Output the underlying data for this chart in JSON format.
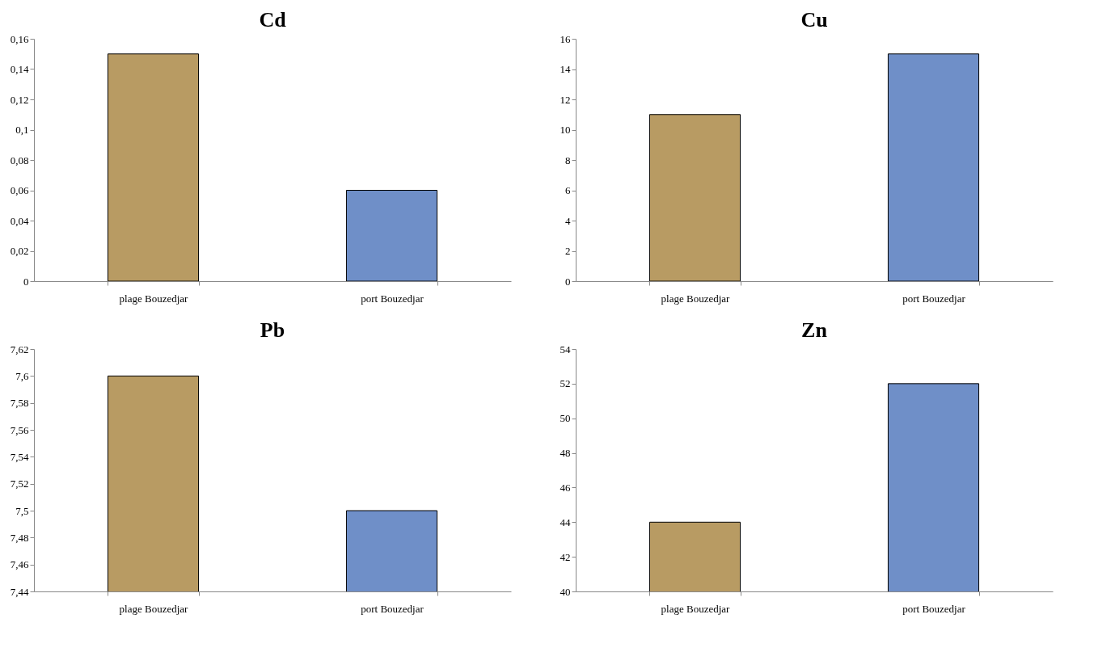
{
  "chart_data": [
    {
      "type": "bar",
      "title": "Cd",
      "categories": [
        "plage Bouzedjar",
        "port Bouzedjar"
      ],
      "values": [
        0.15,
        0.06
      ],
      "colors": [
        "#b89b63",
        "#6f8fc8"
      ],
      "ylim": [
        0,
        0.16
      ],
      "yticks": [
        0,
        {
          "value": 0.02,
          "label": "0,02"
        },
        {
          "value": 0.04,
          "label": "0,04"
        },
        {
          "value": 0.06,
          "label": "0,06"
        },
        {
          "value": 0.08,
          "label": "0,08"
        },
        {
          "value": 0.1,
          "label": "0,1"
        },
        {
          "value": 0.12,
          "label": "0,12"
        },
        {
          "value": 0.14,
          "label": "0,14"
        },
        {
          "value": 0.16,
          "label": "0,16"
        }
      ]
    },
    {
      "type": "bar",
      "title": "Cu",
      "categories": [
        "plage Bouzedjar",
        "port Bouzedjar"
      ],
      "values": [
        11,
        15
      ],
      "colors": [
        "#b89b63",
        "#6f8fc8"
      ],
      "ylim": [
        0,
        16
      ],
      "yticks": [
        0,
        2,
        4,
        6,
        8,
        10,
        12,
        14,
        16
      ]
    },
    {
      "type": "bar",
      "title": "Pb",
      "categories": [
        "plage Bouzedjar",
        "port Bouzedjar"
      ],
      "values": [
        7.6,
        7.5
      ],
      "colors": [
        "#b89b63",
        "#6f8fc8"
      ],
      "ylim": [
        7.44,
        7.62
      ],
      "yticks": [
        {
          "value": 7.44,
          "label": "7,44"
        },
        {
          "value": 7.46,
          "label": "7,46"
        },
        {
          "value": 7.48,
          "label": "7,48"
        },
        {
          "value": 7.5,
          "label": "7,5"
        },
        {
          "value": 7.52,
          "label": "7,52"
        },
        {
          "value": 7.54,
          "label": "7,54"
        },
        {
          "value": 7.56,
          "label": "7,56"
        },
        {
          "value": 7.58,
          "label": "7,58"
        },
        {
          "value": 7.6,
          "label": "7,6"
        },
        {
          "value": 7.62,
          "label": "7,62"
        }
      ]
    },
    {
      "type": "bar",
      "title": "Zn",
      "categories": [
        "plage Bouzedjar",
        "port Bouzedjar"
      ],
      "values": [
        44,
        52
      ],
      "colors": [
        "#b89b63",
        "#6f8fc8"
      ],
      "ylim": [
        40,
        54
      ],
      "yticks": [
        40,
        42,
        44,
        46,
        48,
        50,
        52,
        54
      ]
    }
  ]
}
